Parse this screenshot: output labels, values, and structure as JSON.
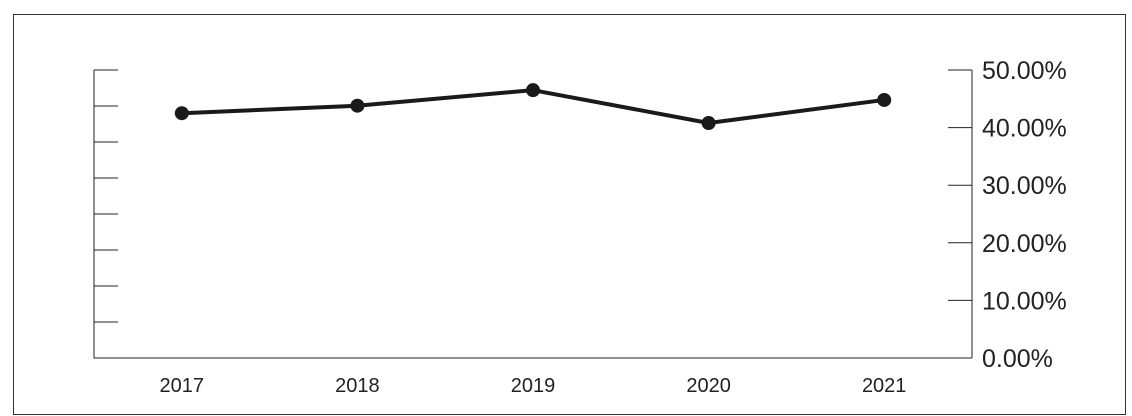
{
  "chart_data": {
    "type": "line",
    "categories": [
      "2017",
      "2018",
      "2019",
      "2020",
      "2021"
    ],
    "series": [
      {
        "values": [
          42.5,
          43.8,
          46.5,
          40.8,
          44.8
        ]
      }
    ],
    "y_axis": {
      "side": "right",
      "ylim": [
        0,
        50
      ],
      "tick_labels": [
        "0.00%",
        "10.00%",
        "20.00%",
        "30.00%",
        "40.00%",
        "50.00%"
      ]
    },
    "secondary_axis": {
      "side": "left",
      "tick_count": 8,
      "labels_shown": false
    },
    "grid": false,
    "legend": "none",
    "colors": {
      "line": "#1a1a1a",
      "marker": "#1a1a1a",
      "axis": "#222222",
      "frame": "#333333",
      "text": "#222222"
    }
  }
}
